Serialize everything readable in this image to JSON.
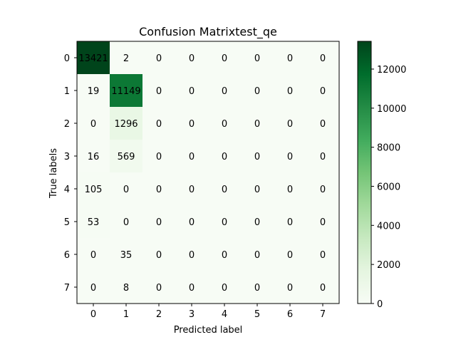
{
  "chart_data": {
    "type": "heatmap",
    "title": "Confusion Matrixtest_qe",
    "xlabel": "Predicted label",
    "ylabel": "True labels",
    "x_categories": [
      "0",
      "1",
      "2",
      "3",
      "4",
      "5",
      "6",
      "7"
    ],
    "y_categories": [
      "0",
      "1",
      "2",
      "3",
      "4",
      "5",
      "6",
      "7"
    ],
    "matrix": [
      [
        13421,
        2,
        0,
        0,
        0,
        0,
        0,
        0
      ],
      [
        19,
        11149,
        0,
        0,
        0,
        0,
        0,
        0
      ],
      [
        0,
        1296,
        0,
        0,
        0,
        0,
        0,
        0
      ],
      [
        16,
        569,
        0,
        0,
        0,
        0,
        0,
        0
      ],
      [
        105,
        0,
        0,
        0,
        0,
        0,
        0,
        0
      ],
      [
        53,
        0,
        0,
        0,
        0,
        0,
        0,
        0
      ],
      [
        0,
        35,
        0,
        0,
        0,
        0,
        0,
        0
      ],
      [
        0,
        8,
        0,
        0,
        0,
        0,
        0,
        0
      ]
    ],
    "colormap": "Greens",
    "colormap_stops": [
      "#f7fcf5",
      "#e5f5e0",
      "#c7e9c0",
      "#a1d99b",
      "#74c476",
      "#41ab5d",
      "#238b45",
      "#006d2c",
      "#00441b"
    ],
    "value_range": [
      0,
      13421
    ],
    "colorbar_ticks": [
      "0",
      "2000",
      "4000",
      "6000",
      "8000",
      "10000",
      "12000"
    ],
    "colorbar_tick_values": [
      0,
      2000,
      4000,
      6000,
      8000,
      10000,
      12000
    ],
    "grid": false
  }
}
